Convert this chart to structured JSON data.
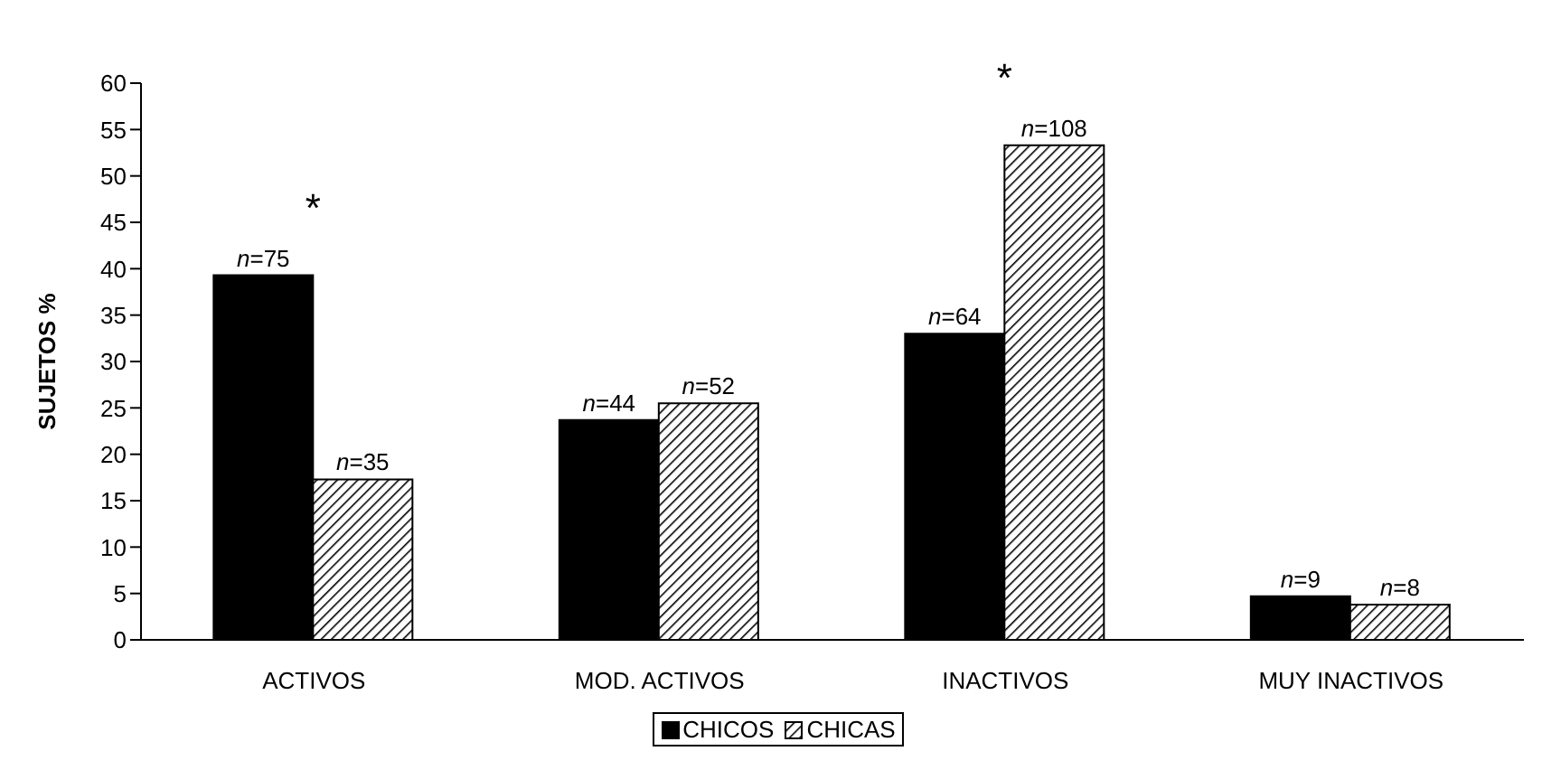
{
  "chart_data": {
    "type": "bar",
    "ylabel": "SUJETOS %",
    "categories": [
      "ACTIVOS",
      "MOD. ACTIVOS",
      "INACTIVOS",
      "MUY INACTIVOS"
    ],
    "series": [
      {
        "name": "CHICOS",
        "color": "#000000",
        "values": [
          39.3,
          23.7,
          33.0,
          4.7
        ]
      },
      {
        "name": "CHICAS",
        "color": "#000000",
        "values": [
          17.3,
          25.5,
          53.3,
          3.8
        ]
      }
    ],
    "ylim": [
      0,
      60
    ],
    "yticks": [
      0,
      5,
      10,
      15,
      20,
      25,
      30,
      35,
      40,
      45,
      50,
      55,
      60
    ],
    "grid": false,
    "legend": "bottom",
    "annotations": [
      {
        "text": "n=75",
        "x": "ACTIVOS",
        "y": 39.3
      },
      {
        "text": "n=35",
        "x": "ACTIVOS",
        "y": 17.3
      },
      {
        "text": "n=44",
        "x": "MOD. ACTIVOS",
        "y": 23.7
      },
      {
        "text": "n=52",
        "x": "MOD. ACTIVOS",
        "y": 25.5
      },
      {
        "text": "n=64",
        "x": "INACTIVOS",
        "y": 33.0
      },
      {
        "text": "n=108",
        "x": "INACTIVOS",
        "y": 53.3
      },
      {
        "text": "n=9",
        "x": "MUY INACTIVOS",
        "y": 4.7
      },
      {
        "text": "n=8",
        "x": "MUY INACTIVOS",
        "y": 3.8
      },
      "*",
      "*"
    ]
  }
}
